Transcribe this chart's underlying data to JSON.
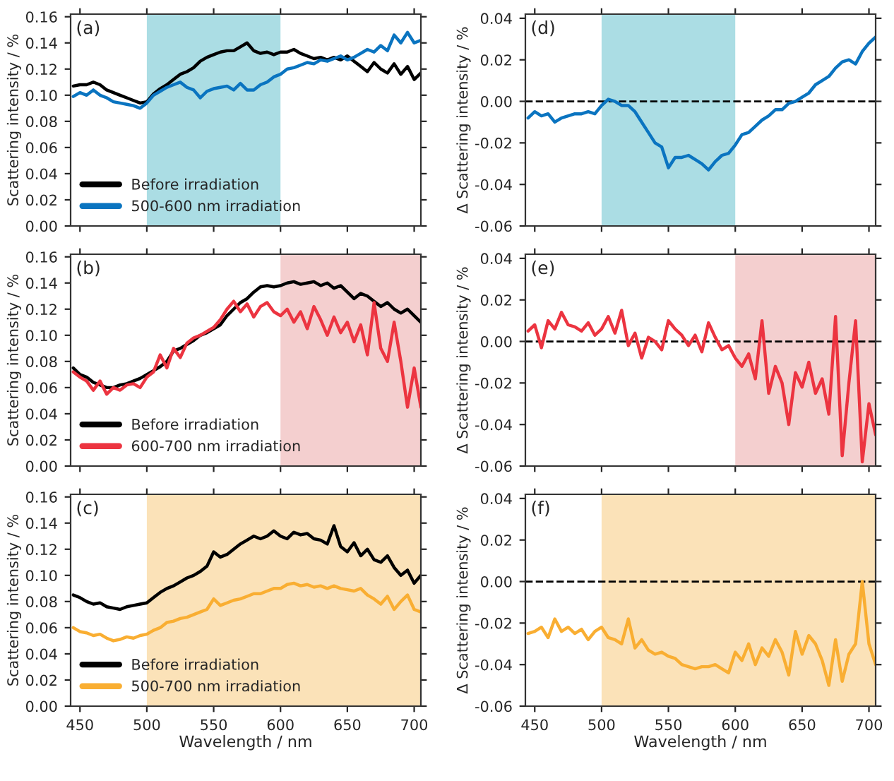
{
  "chart_data": [
    {
      "type": "line",
      "annotations": [
        "(a)"
      ],
      "ylabel": "Scattering intensity / %",
      "tick_labels": "y",
      "legend": "bottom left",
      "x": [
        445,
        450,
        455,
        460,
        465,
        470,
        475,
        480,
        485,
        490,
        495,
        500,
        505,
        510,
        515,
        520,
        525,
        530,
        535,
        540,
        545,
        550,
        555,
        560,
        565,
        570,
        575,
        580,
        585,
        590,
        595,
        600,
        605,
        610,
        615,
        620,
        625,
        630,
        635,
        640,
        645,
        650,
        655,
        660,
        665,
        670,
        675,
        680,
        685,
        690,
        695,
        700,
        705
      ],
      "series": [
        {
          "name": "Before irradiation",
          "color": "#000000",
          "values": [
            0.107,
            0.108,
            0.108,
            0.11,
            0.108,
            0.104,
            0.102,
            0.1,
            0.098,
            0.096,
            0.094,
            0.095,
            0.101,
            0.105,
            0.108,
            0.112,
            0.116,
            0.118,
            0.121,
            0.126,
            0.129,
            0.131,
            0.133,
            0.134,
            0.134,
            0.137,
            0.14,
            0.134,
            0.132,
            0.133,
            0.131,
            0.133,
            0.133,
            0.135,
            0.132,
            0.13,
            0.128,
            0.129,
            0.127,
            0.129,
            0.127,
            0.13,
            0.126,
            0.122,
            0.118,
            0.125,
            0.12,
            0.117,
            0.124,
            0.116,
            0.122,
            0.112,
            0.117
          ]
        },
        {
          "name": "500-600 nm irradiation",
          "color": "#0a74c0",
          "values": [
            0.099,
            0.102,
            0.1,
            0.104,
            0.1,
            0.098,
            0.095,
            0.094,
            0.093,
            0.092,
            0.09,
            0.094,
            0.1,
            0.103,
            0.106,
            0.108,
            0.11,
            0.106,
            0.104,
            0.098,
            0.103,
            0.105,
            0.106,
            0.107,
            0.104,
            0.109,
            0.104,
            0.104,
            0.108,
            0.11,
            0.114,
            0.116,
            0.12,
            0.121,
            0.123,
            0.125,
            0.124,
            0.127,
            0.126,
            0.128,
            0.13,
            0.127,
            0.129,
            0.132,
            0.135,
            0.133,
            0.138,
            0.134,
            0.146,
            0.14,
            0.148,
            0.14,
            0.142
          ]
        }
      ],
      "xlim": [
        443,
        705
      ],
      "xticks": [
        450,
        500,
        550,
        600,
        650,
        700
      ],
      "ylim": [
        0,
        0.162
      ],
      "yticks": [
        {
          "value": 0,
          "label": "0.00"
        },
        {
          "value": 0.02,
          "label": "0.02"
        },
        {
          "value": 0.04,
          "label": "0.04"
        },
        {
          "value": 0.06,
          "label": "0.06"
        },
        {
          "value": 0.08,
          "label": "0.08"
        },
        {
          "value": 0.1,
          "label": "0.10"
        },
        {
          "value": 0.12,
          "label": "0.12"
        },
        {
          "value": 0.14,
          "label": "0.14"
        },
        {
          "value": 0.16,
          "label": "0.16"
        }
      ],
      "bands": [
        {
          "axis": "x",
          "from": 500,
          "to": 600,
          "color": "#abdde4"
        }
      ]
    },
    {
      "type": "line",
      "annotations": [
        "(d)"
      ],
      "ylabel": "Δ Scattering intensity / %",
      "tick_labels": "y",
      "x": [
        445,
        450,
        455,
        460,
        465,
        470,
        475,
        480,
        485,
        490,
        495,
        500,
        505,
        510,
        515,
        520,
        525,
        530,
        535,
        540,
        545,
        550,
        555,
        560,
        565,
        570,
        575,
        580,
        585,
        590,
        595,
        600,
        605,
        610,
        615,
        620,
        625,
        630,
        635,
        640,
        645,
        650,
        655,
        660,
        665,
        670,
        675,
        680,
        685,
        690,
        695,
        700,
        705
      ],
      "series": [
        {
          "color": "#0a74c0",
          "values": [
            -0.008,
            -0.005,
            -0.007,
            -0.006,
            -0.01,
            -0.008,
            -0.007,
            -0.006,
            -0.006,
            -0.005,
            -0.006,
            -0.002,
            0.001,
            0.0,
            -0.002,
            -0.002,
            -0.005,
            -0.01,
            -0.015,
            -0.02,
            -0.022,
            -0.032,
            -0.027,
            -0.027,
            -0.026,
            -0.028,
            -0.03,
            -0.033,
            -0.029,
            -0.026,
            -0.025,
            -0.021,
            -0.016,
            -0.015,
            -0.012,
            -0.009,
            -0.007,
            -0.004,
            -0.004,
            -0.001,
            0.0,
            0.002,
            0.004,
            0.008,
            0.01,
            0.012,
            0.016,
            0.019,
            0.02,
            0.018,
            0.024,
            0.028,
            0.031
          ]
        }
      ],
      "xlim": [
        443,
        705
      ],
      "xticks": [
        450,
        500,
        550,
        600,
        650,
        700
      ],
      "ylim": [
        -0.06,
        0.042
      ],
      "yticks": [
        {
          "value": -0.06,
          "label": "-0.06"
        },
        {
          "value": -0.04,
          "label": "-0.04"
        },
        {
          "value": -0.02,
          "label": "-0.02"
        },
        {
          "value": 0,
          "label": "0.00"
        },
        {
          "value": 0.02,
          "label": "0.02"
        },
        {
          "value": 0.04,
          "label": "0.04"
        }
      ],
      "bands": [
        {
          "axis": "x",
          "from": 500,
          "to": 600,
          "color": "#abdde4"
        }
      ],
      "ref_lines": [
        {
          "axis": "y",
          "value": 0,
          "line_style": "dashed",
          "color": "#000000"
        }
      ]
    },
    {
      "type": "line",
      "annotations": [
        "(b)"
      ],
      "ylabel": "Scattering intensity / %",
      "tick_labels": "y",
      "legend": "bottom left",
      "x": [
        445,
        450,
        455,
        460,
        465,
        470,
        475,
        480,
        485,
        490,
        495,
        500,
        505,
        510,
        515,
        520,
        525,
        530,
        535,
        540,
        545,
        550,
        555,
        560,
        565,
        570,
        575,
        580,
        585,
        590,
        595,
        600,
        605,
        610,
        615,
        620,
        625,
        630,
        635,
        640,
        645,
        650,
        655,
        660,
        665,
        670,
        675,
        680,
        685,
        690,
        695,
        700,
        705
      ],
      "series": [
        {
          "name": "Before irradiation",
          "color": "#000000",
          "values": [
            0.075,
            0.07,
            0.068,
            0.064,
            0.062,
            0.06,
            0.06,
            0.062,
            0.063,
            0.065,
            0.067,
            0.07,
            0.073,
            0.076,
            0.08,
            0.088,
            0.09,
            0.093,
            0.096,
            0.1,
            0.102,
            0.105,
            0.108,
            0.115,
            0.12,
            0.125,
            0.128,
            0.133,
            0.137,
            0.138,
            0.137,
            0.138,
            0.14,
            0.141,
            0.139,
            0.14,
            0.141,
            0.138,
            0.14,
            0.136,
            0.138,
            0.133,
            0.128,
            0.132,
            0.13,
            0.126,
            0.122,
            0.125,
            0.12,
            0.117,
            0.12,
            0.115,
            0.11
          ]
        },
        {
          "name": "600-700 nm irradiation",
          "color": "#ec3440",
          "values": [
            0.072,
            0.068,
            0.065,
            0.058,
            0.065,
            0.055,
            0.06,
            0.058,
            0.062,
            0.063,
            0.06,
            0.068,
            0.072,
            0.085,
            0.075,
            0.09,
            0.083,
            0.094,
            0.098,
            0.1,
            0.103,
            0.106,
            0.112,
            0.12,
            0.126,
            0.118,
            0.124,
            0.114,
            0.122,
            0.125,
            0.118,
            0.115,
            0.12,
            0.11,
            0.118,
            0.105,
            0.122,
            0.112,
            0.1,
            0.114,
            0.102,
            0.11,
            0.095,
            0.108,
            0.085,
            0.125,
            0.09,
            0.08,
            0.11,
            0.08,
            0.045,
            0.075,
            0.045
          ]
        }
      ],
      "xlim": [
        443,
        705
      ],
      "xticks": [
        450,
        500,
        550,
        600,
        650,
        700
      ],
      "ylim": [
        0,
        0.162
      ],
      "yticks": [
        {
          "value": 0,
          "label": "0.00"
        },
        {
          "value": 0.02,
          "label": "0.02"
        },
        {
          "value": 0.04,
          "label": "0.04"
        },
        {
          "value": 0.06,
          "label": "0.06"
        },
        {
          "value": 0.08,
          "label": "0.08"
        },
        {
          "value": 0.1,
          "label": "0.10"
        },
        {
          "value": 0.12,
          "label": "0.12"
        },
        {
          "value": 0.14,
          "label": "0.14"
        },
        {
          "value": 0.16,
          "label": "0.16"
        }
      ],
      "bands": [
        {
          "axis": "x",
          "from": 600,
          "to": 705,
          "color": "#f4cfcf"
        }
      ]
    },
    {
      "type": "line",
      "annotations": [
        "(e)"
      ],
      "ylabel": "Δ Scattering intensity / %",
      "tick_labels": "y",
      "x": [
        445,
        450,
        455,
        460,
        465,
        470,
        475,
        480,
        485,
        490,
        495,
        500,
        505,
        510,
        515,
        520,
        525,
        530,
        535,
        540,
        545,
        550,
        555,
        560,
        565,
        570,
        575,
        580,
        585,
        590,
        595,
        600,
        605,
        610,
        615,
        620,
        625,
        630,
        635,
        640,
        645,
        650,
        655,
        660,
        665,
        670,
        675,
        680,
        685,
        690,
        695,
        700,
        705
      ],
      "series": [
        {
          "color": "#ec3440",
          "values": [
            0.005,
            0.008,
            -0.003,
            0.01,
            0.006,
            0.014,
            0.008,
            0.007,
            0.005,
            0.009,
            0.003,
            0.006,
            0.012,
            0.004,
            0.015,
            -0.002,
            0.004,
            -0.008,
            0.002,
            0.0,
            -0.004,
            0.01,
            0.006,
            0.003,
            -0.002,
            0.003,
            -0.005,
            0.009,
            0.002,
            -0.004,
            -0.002,
            -0.008,
            -0.012,
            -0.006,
            -0.018,
            0.01,
            -0.025,
            -0.012,
            -0.02,
            -0.04,
            -0.015,
            -0.022,
            -0.01,
            -0.025,
            -0.018,
            -0.035,
            0.012,
            -0.055,
            -0.02,
            0.01,
            -0.058,
            -0.03,
            -0.045
          ]
        }
      ],
      "xlim": [
        443,
        705
      ],
      "xticks": [
        450,
        500,
        550,
        600,
        650,
        700
      ],
      "ylim": [
        -0.06,
        0.042
      ],
      "yticks": [
        {
          "value": -0.06,
          "label": "-0.06"
        },
        {
          "value": -0.04,
          "label": "-0.04"
        },
        {
          "value": -0.02,
          "label": "-0.02"
        },
        {
          "value": 0,
          "label": "0.00"
        },
        {
          "value": 0.02,
          "label": "0.02"
        },
        {
          "value": 0.04,
          "label": "0.04"
        }
      ],
      "bands": [
        {
          "axis": "x",
          "from": 600,
          "to": 705,
          "color": "#f4cfcf"
        }
      ],
      "ref_lines": [
        {
          "axis": "y",
          "value": 0,
          "line_style": "dashed",
          "color": "#000000"
        }
      ]
    },
    {
      "type": "line",
      "annotations": [
        "(c)"
      ],
      "ylabel": "Scattering intensity / %",
      "xlabel": "Wavelength / nm",
      "legend": "bottom left",
      "x": [
        445,
        450,
        455,
        460,
        465,
        470,
        475,
        480,
        485,
        490,
        495,
        500,
        505,
        510,
        515,
        520,
        525,
        530,
        535,
        540,
        545,
        550,
        555,
        560,
        565,
        570,
        575,
        580,
        585,
        590,
        595,
        600,
        605,
        610,
        615,
        620,
        625,
        630,
        635,
        640,
        645,
        650,
        655,
        660,
        665,
        670,
        675,
        680,
        685,
        690,
        695,
        700,
        705
      ],
      "series": [
        {
          "name": "Before irradiation",
          "color": "#000000",
          "values": [
            0.085,
            0.083,
            0.08,
            0.078,
            0.079,
            0.076,
            0.075,
            0.074,
            0.076,
            0.077,
            0.078,
            0.079,
            0.083,
            0.087,
            0.09,
            0.092,
            0.095,
            0.098,
            0.1,
            0.103,
            0.107,
            0.118,
            0.114,
            0.116,
            0.12,
            0.124,
            0.127,
            0.13,
            0.128,
            0.13,
            0.134,
            0.13,
            0.128,
            0.133,
            0.131,
            0.132,
            0.128,
            0.127,
            0.124,
            0.138,
            0.122,
            0.118,
            0.125,
            0.115,
            0.12,
            0.112,
            0.11,
            0.115,
            0.106,
            0.1,
            0.104,
            0.094,
            0.1
          ]
        },
        {
          "name": "500-700 nm irradiation",
          "color": "#f9ae32",
          "values": [
            0.06,
            0.057,
            0.056,
            0.054,
            0.055,
            0.052,
            0.05,
            0.051,
            0.053,
            0.052,
            0.054,
            0.055,
            0.058,
            0.06,
            0.064,
            0.065,
            0.067,
            0.068,
            0.07,
            0.072,
            0.074,
            0.082,
            0.077,
            0.079,
            0.081,
            0.082,
            0.084,
            0.086,
            0.086,
            0.088,
            0.09,
            0.09,
            0.093,
            0.094,
            0.092,
            0.093,
            0.091,
            0.092,
            0.09,
            0.092,
            0.09,
            0.089,
            0.088,
            0.09,
            0.085,
            0.082,
            0.078,
            0.084,
            0.074,
            0.08,
            0.085,
            0.074,
            0.072
          ]
        }
      ],
      "xlim": [
        443,
        705
      ],
      "xticks": [
        450,
        500,
        550,
        600,
        650,
        700
      ],
      "ylim": [
        0,
        0.162
      ],
      "yticks": [
        {
          "value": 0,
          "label": "0.00"
        },
        {
          "value": 0.02,
          "label": "0.02"
        },
        {
          "value": 0.04,
          "label": "0.04"
        },
        {
          "value": 0.06,
          "label": "0.06"
        },
        {
          "value": 0.08,
          "label": "0.08"
        },
        {
          "value": 0.1,
          "label": "0.10"
        },
        {
          "value": 0.12,
          "label": "0.12"
        },
        {
          "value": 0.14,
          "label": "0.14"
        },
        {
          "value": 0.16,
          "label": "0.16"
        }
      ],
      "bands": [
        {
          "axis": "x",
          "from": 500,
          "to": 705,
          "color": "#fbe2b8"
        }
      ]
    },
    {
      "type": "line",
      "annotations": [
        "(f)"
      ],
      "ylabel": "Δ Scattering intensity / %",
      "xlabel": "Wavelength / nm",
      "x": [
        445,
        450,
        455,
        460,
        465,
        470,
        475,
        480,
        485,
        490,
        495,
        500,
        505,
        510,
        515,
        520,
        525,
        530,
        535,
        540,
        545,
        550,
        555,
        560,
        565,
        570,
        575,
        580,
        585,
        590,
        595,
        600,
        605,
        610,
        615,
        620,
        625,
        630,
        635,
        640,
        645,
        650,
        655,
        660,
        665,
        670,
        675,
        680,
        685,
        690,
        695,
        700,
        705
      ],
      "series": [
        {
          "color": "#f9ae32",
          "values": [
            -0.025,
            -0.024,
            -0.022,
            -0.027,
            -0.018,
            -0.024,
            -0.022,
            -0.025,
            -0.023,
            -0.028,
            -0.024,
            -0.022,
            -0.027,
            -0.028,
            -0.03,
            -0.018,
            -0.032,
            -0.028,
            -0.033,
            -0.035,
            -0.034,
            -0.036,
            -0.037,
            -0.04,
            -0.041,
            -0.042,
            -0.041,
            -0.041,
            -0.04,
            -0.042,
            -0.044,
            -0.034,
            -0.038,
            -0.03,
            -0.04,
            -0.032,
            -0.036,
            -0.028,
            -0.034,
            -0.045,
            -0.024,
            -0.035,
            -0.026,
            -0.03,
            -0.038,
            -0.05,
            -0.028,
            -0.048,
            -0.035,
            -0.03,
            0.0,
            -0.03,
            -0.04
          ]
        }
      ],
      "xlim": [
        443,
        705
      ],
      "xticks": [
        450,
        500,
        550,
        600,
        650,
        700
      ],
      "ylim": [
        -0.06,
        0.042
      ],
      "yticks": [
        {
          "value": -0.06,
          "label": "-0.06"
        },
        {
          "value": -0.04,
          "label": "-0.04"
        },
        {
          "value": -0.02,
          "label": "-0.02"
        },
        {
          "value": 0,
          "label": "0.00"
        },
        {
          "value": 0.02,
          "label": "0.02"
        },
        {
          "value": 0.04,
          "label": "0.04"
        }
      ],
      "bands": [
        {
          "axis": "x",
          "from": 500,
          "to": 705,
          "color": "#fbe2b8"
        }
      ],
      "ref_lines": [
        {
          "axis": "y",
          "value": 0,
          "line_style": "dashed",
          "color": "#000000"
        }
      ]
    }
  ]
}
